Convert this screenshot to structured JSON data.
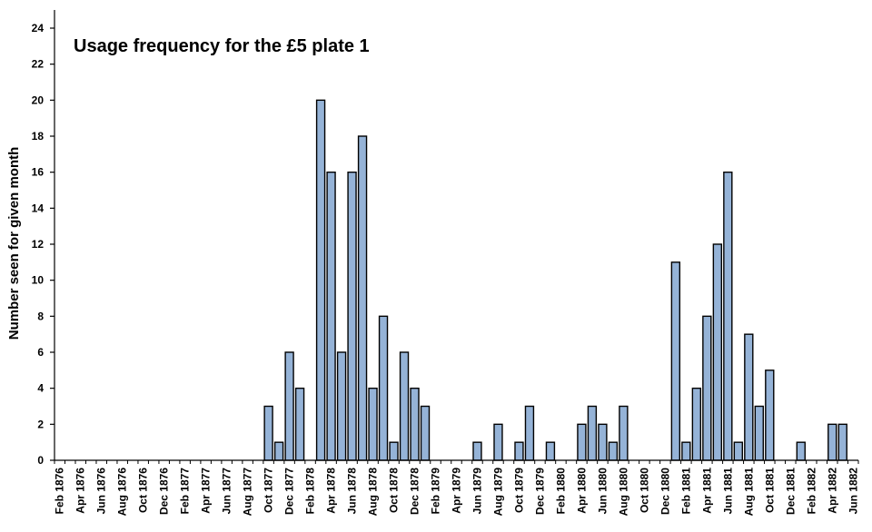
{
  "chart_data": {
    "type": "bar",
    "title": "Usage frequency for the £5 plate 1",
    "xlabel": "",
    "ylabel": "Number seen for given month",
    "ylim": [
      0,
      24
    ],
    "yticks": [
      0,
      2,
      4,
      6,
      8,
      10,
      12,
      14,
      16,
      18,
      20,
      22,
      24
    ],
    "bar_color": "#95b3d7",
    "bar_edge_color": "#000000",
    "grid": false,
    "legend": "none",
    "categories": [
      "Feb 1876",
      "Mar 1876",
      "Apr 1876",
      "May 1876",
      "Jun 1876",
      "Jul 1876",
      "Aug 1876",
      "Sep 1876",
      "Oct 1876",
      "Nov 1876",
      "Dec 1876",
      "Jan 1877",
      "Feb 1877",
      "Mar 1877",
      "Apr 1877",
      "May 1877",
      "Jun 1877",
      "Jul 1877",
      "Aug 1877",
      "Sep 1877",
      "Oct 1877",
      "Nov 1877",
      "Dec 1877",
      "Jan 1878",
      "Feb 1878",
      "Mar 1878",
      "Apr 1878",
      "May 1878",
      "Jun 1878",
      "Jul 1878",
      "Aug 1878",
      "Sep 1878",
      "Oct 1878",
      "Nov 1878",
      "Dec 1878",
      "Jan 1879",
      "Feb 1879",
      "Mar 1879",
      "Apr 1879",
      "May 1879",
      "Jun 1879",
      "Jul 1879",
      "Aug 1879",
      "Sep 1879",
      "Oct 1879",
      "Nov 1879",
      "Dec 1879",
      "Jan 1880",
      "Feb 1880",
      "Mar 1880",
      "Apr 1880",
      "May 1880",
      "Jun 1880",
      "Jul 1880",
      "Aug 1880",
      "Sep 1880",
      "Oct 1880",
      "Nov 1880",
      "Dec 1880",
      "Jan 1881",
      "Feb 1881",
      "Mar 1881",
      "Apr 1881",
      "May 1881",
      "Jun 1881",
      "Jul 1881",
      "Aug 1881",
      "Sep 1881",
      "Oct 1881",
      "Nov 1881",
      "Dec 1881",
      "Jan 1882",
      "Feb 1882",
      "Mar 1882",
      "Apr 1882",
      "May 1882",
      "Jun 1882"
    ],
    "tick_labels": [
      "Feb 1876",
      "Apr 1876",
      "Jun 1876",
      "Aug 1876",
      "Oct 1876",
      "Dec 1876",
      "Feb 1877",
      "Apr 1877",
      "Jun 1877",
      "Aug 1877",
      "Oct 1877",
      "Dec 1877",
      "Feb 1878",
      "Apr 1878",
      "Jun 1878",
      "Aug 1878",
      "Oct 1878",
      "Dec 1878",
      "Feb 1879",
      "Apr 1879",
      "Jun 1879",
      "Aug 1879",
      "Oct 1879",
      "Dec 1879",
      "Feb 1880",
      "Apr 1880",
      "Jun 1880",
      "Aug 1880",
      "Oct 1880",
      "Dec 1880",
      "Feb 1881",
      "Apr 1881",
      "Jun 1881",
      "Aug 1881",
      "Oct 1881",
      "Dec 1881",
      "Feb 1882",
      "Apr 1882",
      "Jun 1882"
    ],
    "values": [
      0,
      0,
      0,
      0,
      0,
      0,
      0,
      0,
      0,
      0,
      0,
      0,
      0,
      0,
      0,
      0,
      0,
      0,
      0,
      0,
      3,
      1,
      6,
      4,
      0,
      20,
      16,
      6,
      16,
      18,
      4,
      8,
      1,
      6,
      4,
      3,
      0,
      0,
      0,
      0,
      1,
      0,
      2,
      0,
      1,
      3,
      0,
      1,
      0,
      0,
      2,
      3,
      2,
      1,
      3,
      0,
      0,
      0,
      0,
      11,
      1,
      4,
      8,
      12,
      16,
      1,
      7,
      3,
      5,
      0,
      0,
      1,
      0,
      0,
      2,
      2,
      0
    ]
  }
}
